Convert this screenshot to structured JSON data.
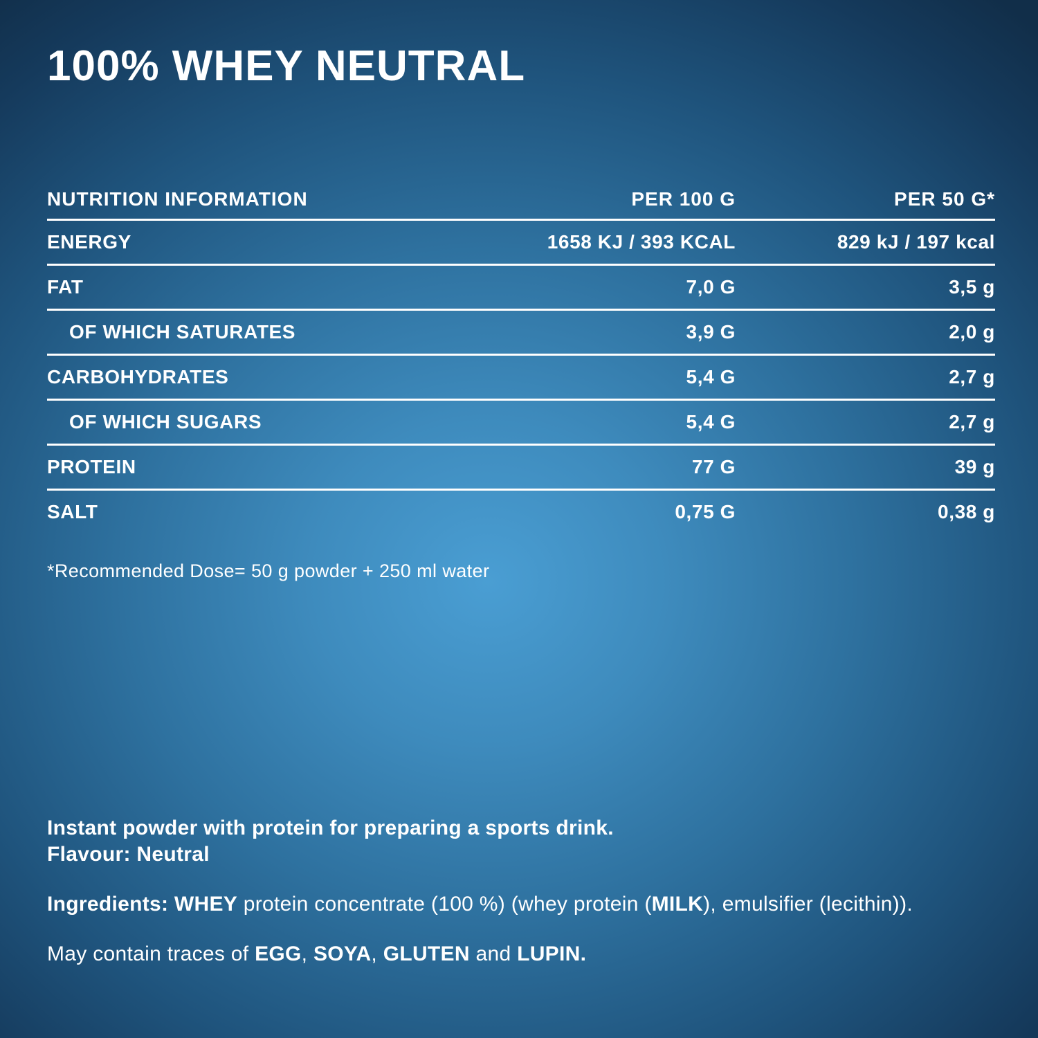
{
  "title": "100% WHEY NEUTRAL",
  "colors": {
    "text": "#FFFFFF",
    "background_center": "#4A9ED3",
    "background_edge": "#112E49",
    "divider": "#FFFFFF"
  },
  "table": {
    "headers": {
      "nutrition": "NUTRITION INFORMATION",
      "per_100g": "PER 100 G",
      "per_50g": "PER 50 G*"
    },
    "rows": [
      {
        "label": "ENERGY",
        "per_100g": "1658 KJ / 393 KCAL",
        "per_50g": "829 kJ / 197 kcal",
        "indent": false
      },
      {
        "label": "FAT",
        "per_100g": "7,0 G",
        "per_50g": "3,5 g",
        "indent": false
      },
      {
        "label": "OF WHICH SATURATES",
        "per_100g": "3,9 G",
        "per_50g": "2,0 g",
        "indent": true
      },
      {
        "label": "CARBOHYDRATES",
        "per_100g": "5,4 G",
        "per_50g": "2,7 g",
        "indent": false
      },
      {
        "label": "OF WHICH SUGARS",
        "per_100g": "5,4 G",
        "per_50g": "2,7 g",
        "indent": true
      },
      {
        "label": "PROTEIN",
        "per_100g": "77 G",
        "per_50g": "39 g",
        "indent": false
      },
      {
        "label": "SALT",
        "per_100g": "0,75 G",
        "per_50g": "0,38 g",
        "indent": false
      }
    ],
    "footnote": "*Recommended Dose= 50 g powder + 250 ml water"
  },
  "description": {
    "line1": "Instant powder with protein for preparing a sports drink.",
    "line2": "Flavour: Neutral"
  },
  "ingredients": [
    {
      "t": "Ingredients: WHEY",
      "b": true
    },
    {
      "t": " protein concentrate (100 %) (whey protein (",
      "b": false
    },
    {
      "t": "MILK",
      "b": true
    },
    {
      "t": "), emulsifier (lecithin)).",
      "b": false
    }
  ],
  "allergens": [
    {
      "t": "May contain traces of ",
      "b": false
    },
    {
      "t": "EGG",
      "b": true
    },
    {
      "t": ", ",
      "b": false
    },
    {
      "t": "SOYA",
      "b": true
    },
    {
      "t": ", ",
      "b": false
    },
    {
      "t": "GLUTEN",
      "b": true
    },
    {
      "t": " and ",
      "b": false
    },
    {
      "t": "LUPIN",
      "b": true
    },
    {
      "t": ".",
      "b": true
    }
  ]
}
